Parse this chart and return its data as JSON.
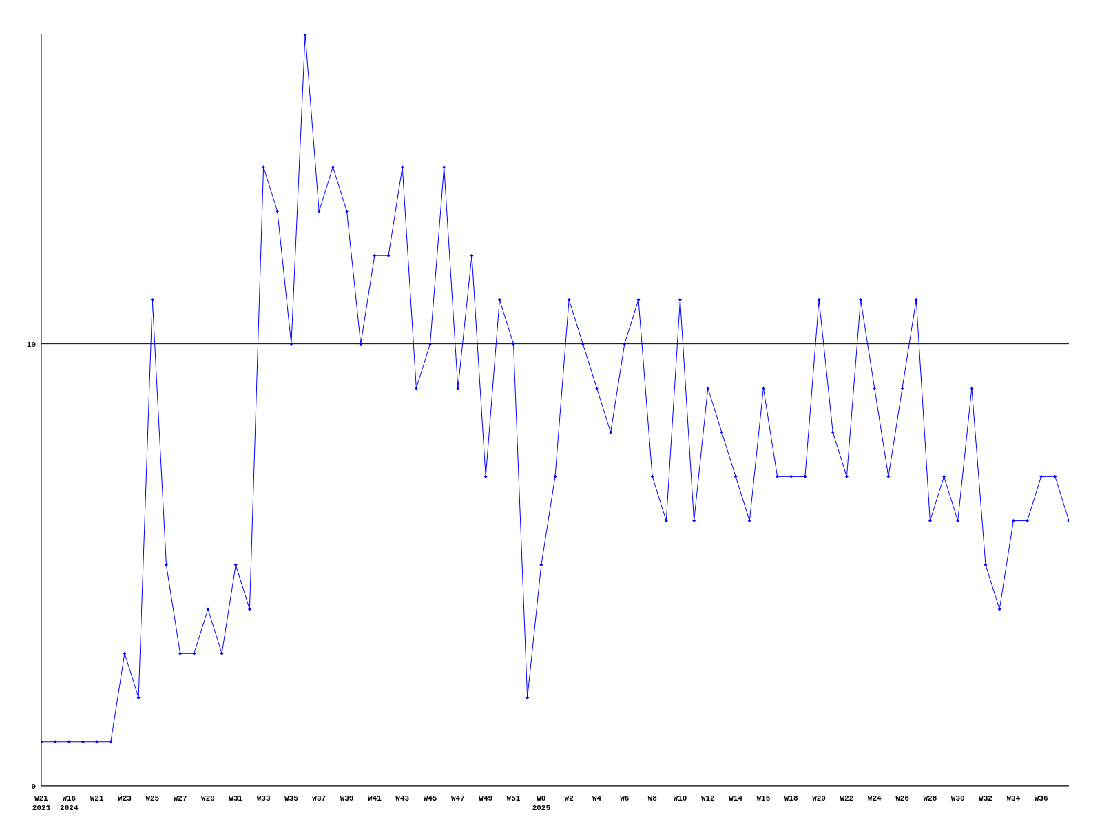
{
  "chart_data": {
    "type": "line",
    "categories": [
      "W21\n2023",
      null,
      "W16\n2024",
      null,
      "W21",
      null,
      "W23",
      null,
      "W25",
      null,
      "W27",
      null,
      "W29",
      null,
      "W31",
      null,
      "W33",
      null,
      "W35",
      null,
      "W37",
      null,
      "W39",
      null,
      "W41",
      null,
      "W43",
      null,
      "W45",
      null,
      "W47",
      null,
      "W49",
      null,
      "W51",
      null,
      "W0\n2025",
      null,
      "W2",
      null,
      "W4",
      null,
      "W6",
      null,
      "W8",
      null,
      "W10",
      null,
      "W12",
      null,
      "W14",
      null,
      "W16",
      null,
      "W18",
      null,
      "W20",
      null,
      "W22",
      null,
      "W24",
      null,
      "W26",
      null,
      "W28",
      null,
      "W30",
      null,
      "W32",
      null,
      "W34",
      null,
      "W36",
      null,
      null
    ],
    "series": [
      {
        "color": "#0000ff",
        "values": [
          1,
          1,
          1,
          1,
          1,
          1,
          3,
          2,
          11,
          5,
          3,
          3,
          4,
          3,
          5,
          4,
          14,
          13,
          10,
          17,
          13,
          14,
          13,
          10,
          12,
          12,
          14,
          9,
          10,
          14,
          9,
          12,
          7,
          11,
          10,
          2,
          5,
          7,
          11,
          10,
          9,
          8,
          10,
          11,
          7,
          6,
          11,
          6,
          9,
          8,
          7,
          6,
          9,
          7,
          7,
          7,
          11,
          8,
          7,
          11,
          9,
          7,
          9,
          11,
          6,
          7,
          6,
          9,
          5,
          4,
          6,
          6,
          7,
          7,
          6
        ]
      }
    ],
    "ylim": [
      0,
      17
    ],
    "yticks": [
      0,
      10
    ],
    "grid": "y",
    "marker": "diamond",
    "line_style": "solid"
  }
}
